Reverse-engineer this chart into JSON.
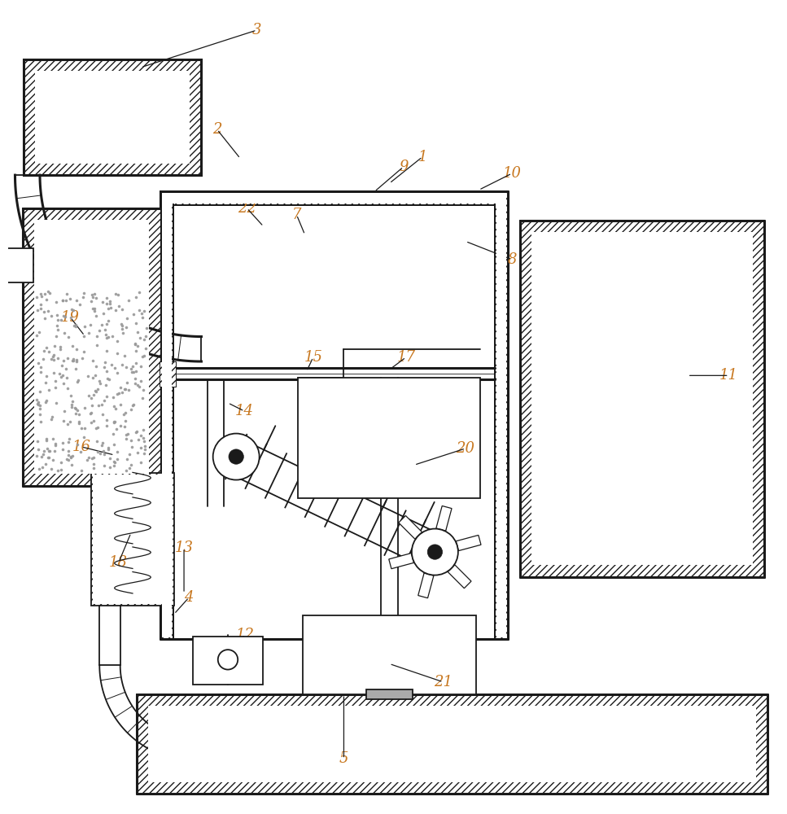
{
  "bg_color": "#ffffff",
  "line_color": "#1a1a1a",
  "label_color": "#c87820",
  "fig_width": 9.67,
  "fig_height": 10.0,
  "hatch_density": "////",
  "label_fs": 13
}
